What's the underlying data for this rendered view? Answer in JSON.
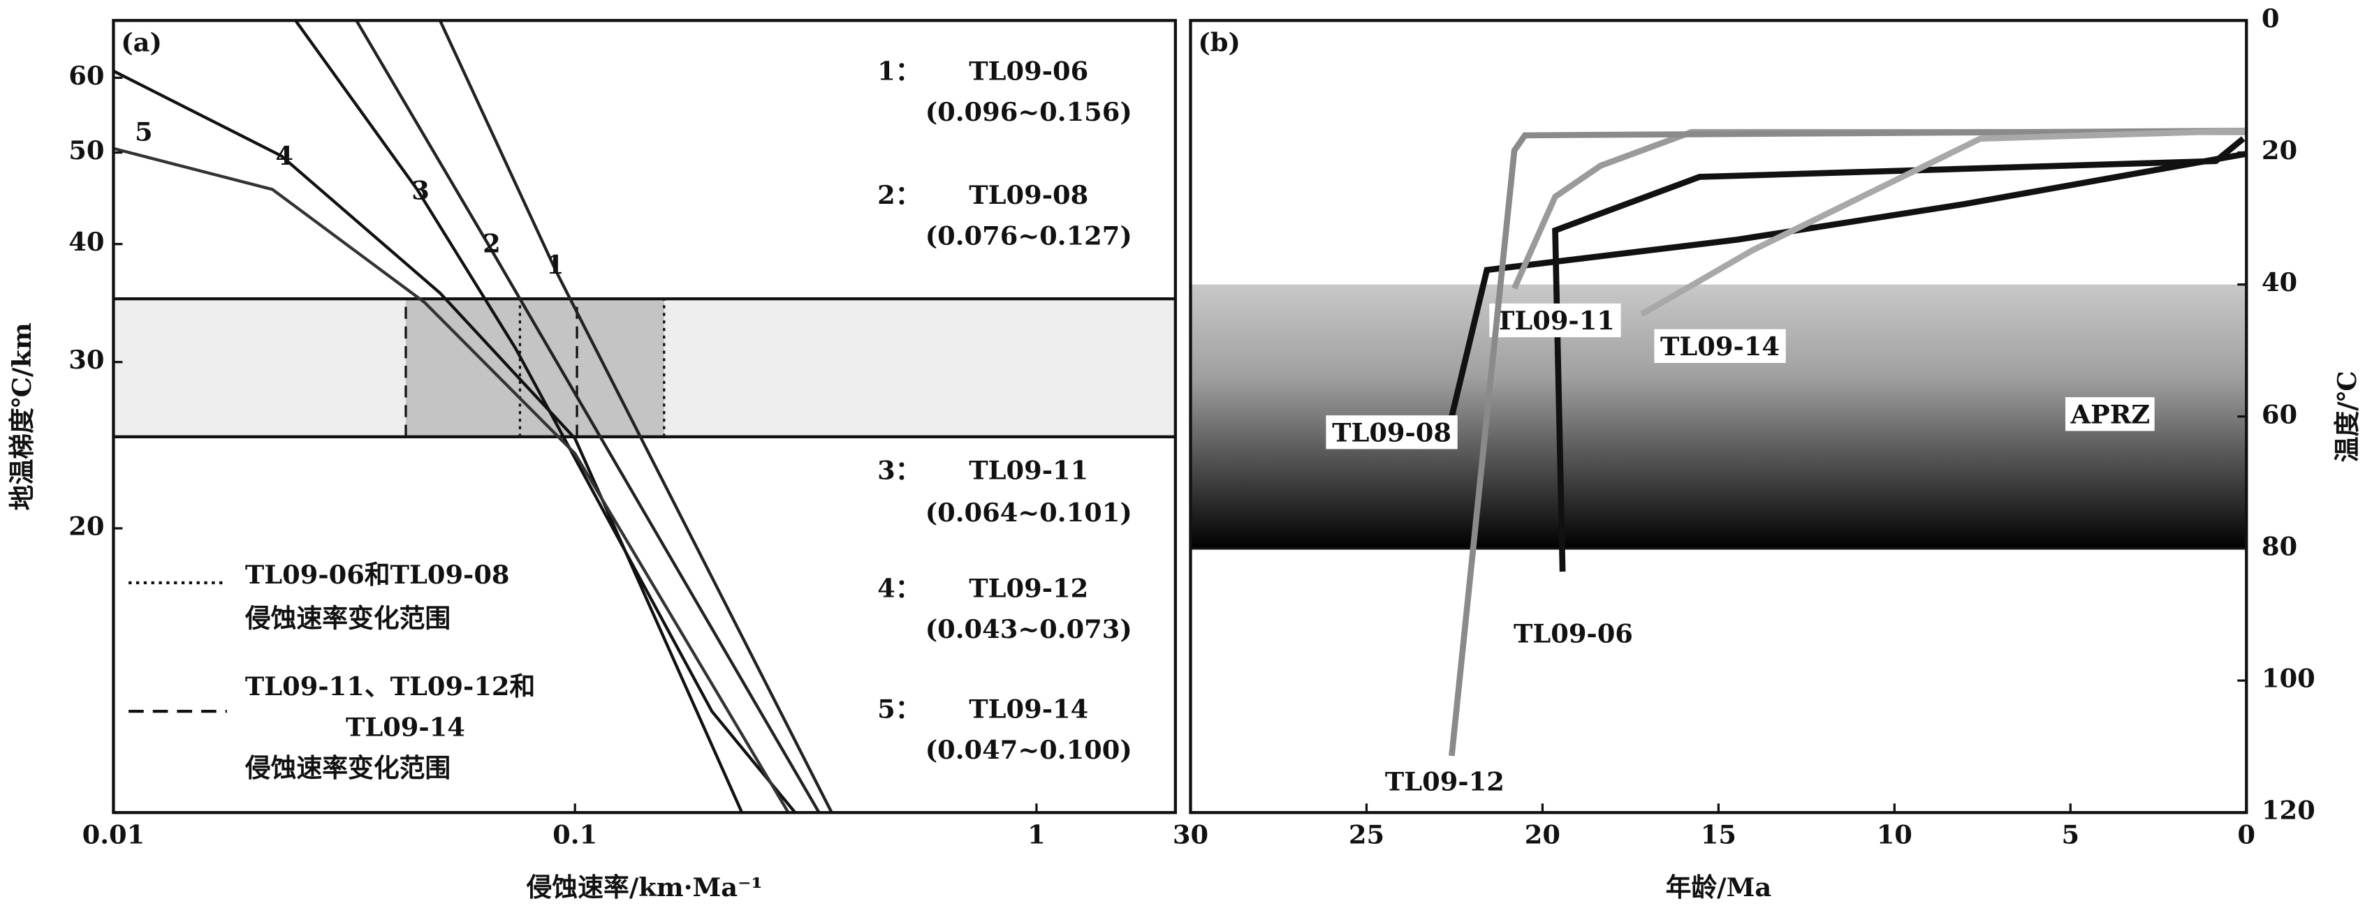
{
  "chart_data": [
    {
      "type": "line",
      "log_x": true,
      "log_y": true,
      "panel_label": "(a)",
      "x_label": "侵蚀速率/km·Ma⁻¹",
      "y_label": "地温梯度℃/km",
      "xlim": [
        0.01,
        2
      ],
      "ylim": [
        10,
        69
      ],
      "xticks": [
        0.01,
        0.1,
        1
      ],
      "yticks": [
        20,
        30,
        40,
        50,
        60
      ],
      "band": [
        25,
        35
      ],
      "dotted_range": [
        0.076,
        0.156
      ],
      "dashed_range": [
        0.043,
        0.101
      ],
      "series": [
        {
          "name": "1",
          "color": "#222",
          "x": [
            0.051,
            0.0911,
            0.36
          ],
          "values": [
            69,
            37.4,
            10
          ]
        },
        {
          "name": "2",
          "color": "#222",
          "x": [
            0.0336,
            0.065,
            0.338
          ],
          "values": [
            69,
            39.9,
            10
          ]
        },
        {
          "name": "3",
          "color": "#111",
          "x": [
            0.0248,
            0.0455,
            0.0744,
            0.198,
            0.3
          ],
          "values": [
            69,
            45.7,
            31,
            12.8,
            10
          ]
        },
        {
          "name": "4",
          "color": "#111",
          "x": [
            0.01,
            0.0231,
            0.051,
            0.1,
            0.23
          ],
          "values": [
            61,
            49.6,
            35.5,
            24.9,
            10
          ]
        },
        {
          "name": "5",
          "color": "#333",
          "x": [
            0.01,
            0.0221,
            0.0472,
            0.1,
            0.29
          ],
          "values": [
            50.5,
            45.7,
            34.7,
            24,
            10
          ]
        }
      ],
      "annotations": [
        {
          "num": "1：",
          "name": "TL09-06",
          "range": "(0.096~0.156)"
        },
        {
          "num": "2：",
          "name": "TL09-08",
          "range": "(0.076~0.127)"
        },
        {
          "num": "3：",
          "name": "TL09-11",
          "range": "(0.064~0.101)"
        },
        {
          "num": "4：",
          "name": "TL09-12",
          "range": "(0.043~0.073)"
        },
        {
          "num": "5：",
          "name": "TL09-14",
          "range": "(0.047~0.100)"
        }
      ],
      "legend": [
        {
          "style": "dotted",
          "lines": [
            "TL09-06和TL09-08",
            "侵蚀速率变化范围"
          ]
        },
        {
          "style": "dashed",
          "lines": [
            "TL09-11、TL09-12和",
            "TL09-14",
            "侵蚀速率变化范围"
          ]
        }
      ]
    },
    {
      "type": "line",
      "panel_label": "(b)",
      "x_label": "年龄/Ma",
      "y_label": "温度/℃",
      "xlim": [
        30,
        0
      ],
      "ylim": [
        120,
        0
      ],
      "xticks": [
        30,
        25,
        20,
        15,
        10,
        5,
        0
      ],
      "yticks": [
        0,
        20,
        40,
        60,
        80,
        100,
        120
      ],
      "band": [
        40,
        80
      ],
      "band_label": "APRZ",
      "series": [
        {
          "name": "TL09-06",
          "color": "#111",
          "x": [
            19.43,
            19.64,
            15.54,
            0.87,
            0.09
          ],
          "values": [
            83.5,
            31.8,
            23.7,
            21.3,
            17.9
          ]
        },
        {
          "name": "TL09-08",
          "color": "#111",
          "x": [
            22.75,
            21.58,
            14.46,
            8.0,
            0
          ],
          "values": [
            63.8,
            37.8,
            33.2,
            27.8,
            20.2
          ]
        },
        {
          "name": "TL09-11",
          "color": "#9a9a9a",
          "x": [
            20.8,
            19.64,
            18.35,
            15.76,
            0
          ],
          "values": [
            40.6,
            26.7,
            22,
            16.9,
            16.9
          ]
        },
        {
          "name": "TL09-12",
          "color": "#8a8a8a",
          "x": [
            22.58,
            20.8,
            20.5,
            0
          ],
          "values": [
            111.4,
            19.7,
            17.4,
            16.7
          ]
        },
        {
          "name": "TL09-14",
          "color": "#a8a8a8",
          "x": [
            17.18,
            14.03,
            7.56,
            0
          ],
          "values": [
            44.5,
            34.8,
            17.9,
            16.7
          ]
        }
      ]
    }
  ]
}
